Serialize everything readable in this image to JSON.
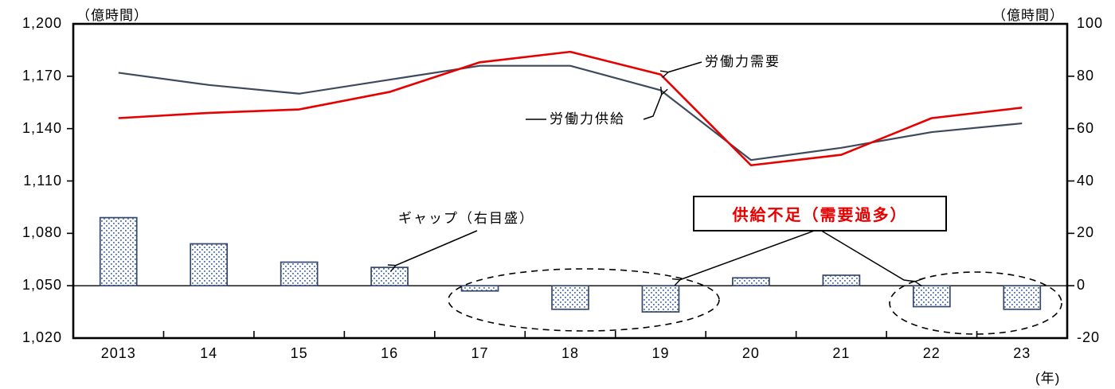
{
  "chart_data": {
    "type": "bar",
    "subtype": "line-and-bar-combo",
    "title": "",
    "categories": [
      "2013",
      "14",
      "15",
      "16",
      "17",
      "18",
      "19",
      "20",
      "21",
      "22",
      "23"
    ],
    "series": [
      {
        "name": "労働力需要",
        "type": "line",
        "axis": "left",
        "color": "#e60000",
        "values": [
          1146,
          1149,
          1151,
          1161,
          1178,
          1184,
          1171,
          1119,
          1125,
          1146,
          1152
        ]
      },
      {
        "name": "労働力供給",
        "type": "line",
        "axis": "left",
        "color": "#3d4a5c",
        "values": [
          1172,
          1165,
          1160,
          1168,
          1176,
          1176,
          1162,
          1122,
          1129,
          1138,
          1143
        ]
      },
      {
        "name": "ギャップ（右目盛）",
        "type": "bar",
        "axis": "right",
        "fill_dot_color": "#4a6fb5",
        "border_color": "#35486b",
        "values": [
          26,
          16,
          9,
          7,
          -2,
          -9,
          -10,
          3,
          4,
          -8,
          -9
        ]
      }
    ],
    "left_axis": {
      "unit": "（億時間）",
      "min": 1020,
      "max": 1200,
      "tick_values": [
        1200,
        1170,
        1140,
        1110,
        1080,
        1050,
        1020
      ],
      "tick_labels": [
        "1,200",
        "1,170",
        "1,140",
        "1,110",
        "1,080",
        "1,050",
        "1,020"
      ]
    },
    "right_axis": {
      "unit": "（億時間）",
      "min": -20,
      "max": 100,
      "tick_values": [
        100,
        80,
        60,
        40,
        20,
        0,
        -20
      ],
      "tick_labels": [
        "100",
        "80",
        "60",
        "40",
        "20",
        "0",
        "-20"
      ]
    },
    "x_axis": {
      "unit": "(年)"
    },
    "grid": false,
    "legend_position": "none (inline annotations)",
    "annotations": {
      "demand_label": "労働力需要",
      "supply_label": "労働力供給",
      "gap_label": "ギャップ（右目盛）",
      "shortage_label": "供給不足（需要過多）",
      "shortage_color": "#e60000",
      "dashed_ellipses": "two dashed ellipses circle the negative bars of 17-19 and 22-23"
    }
  }
}
